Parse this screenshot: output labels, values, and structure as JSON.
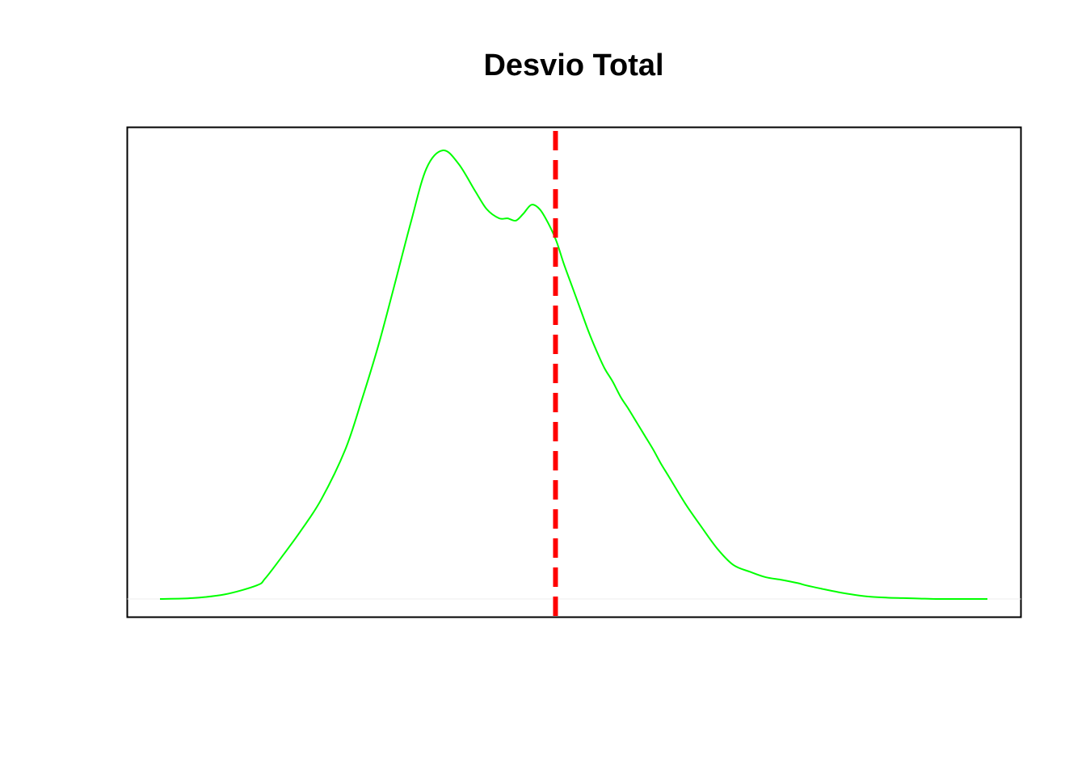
{
  "chart_data": {
    "type": "line",
    "title": "Desvio Total",
    "xlabel": "",
    "ylabel": "",
    "axes_shown": false,
    "grid": false,
    "xlim": [
      0,
      1
    ],
    "ylim": [
      0,
      1.04
    ],
    "series": [
      {
        "color": "#00ff00",
        "x": [
          0.0,
          0.039,
          0.078,
          0.117,
          0.127,
          0.146,
          0.17,
          0.195,
          0.224,
          0.244,
          0.264,
          0.283,
          0.303,
          0.322,
          0.342,
          0.361,
          0.381,
          0.395,
          0.41,
          0.42,
          0.43,
          0.439,
          0.449,
          0.459,
          0.469,
          0.479,
          0.488,
          0.498,
          0.508,
          0.518,
          0.527,
          0.537,
          0.547,
          0.557,
          0.566,
          0.576,
          0.586,
          0.596,
          0.605,
          0.615,
          0.635,
          0.654,
          0.674,
          0.693,
          0.713,
          0.732,
          0.752,
          0.771,
          0.781,
          0.801,
          0.82,
          0.84,
          0.859,
          0.879,
          0.898,
          0.918,
          0.938,
          0.957,
          0.977,
          1.0
        ],
        "y": [
          0.0,
          0.002,
          0.01,
          0.03,
          0.045,
          0.09,
          0.15,
          0.22,
          0.33,
          0.44,
          0.56,
          0.69,
          0.83,
          0.95,
          0.99,
          0.96,
          0.9,
          0.86,
          0.84,
          0.84,
          0.835,
          0.85,
          0.87,
          0.86,
          0.83,
          0.79,
          0.74,
          0.69,
          0.64,
          0.59,
          0.55,
          0.51,
          0.48,
          0.445,
          0.42,
          0.39,
          0.36,
          0.33,
          0.3,
          0.27,
          0.21,
          0.16,
          0.11,
          0.075,
          0.06,
          0.048,
          0.042,
          0.035,
          0.03,
          0.022,
          0.015,
          0.009,
          0.005,
          0.003,
          0.002,
          0.001,
          0.0,
          0.0,
          0.0,
          0.0
        ]
      }
    ],
    "vline": {
      "x": 0.478,
      "color": "#ff0000",
      "style": "dashed"
    }
  },
  "colors": {
    "curve": "#00ff00",
    "vline": "#ff0000",
    "frame": "#000000",
    "background": "#ffffff"
  }
}
